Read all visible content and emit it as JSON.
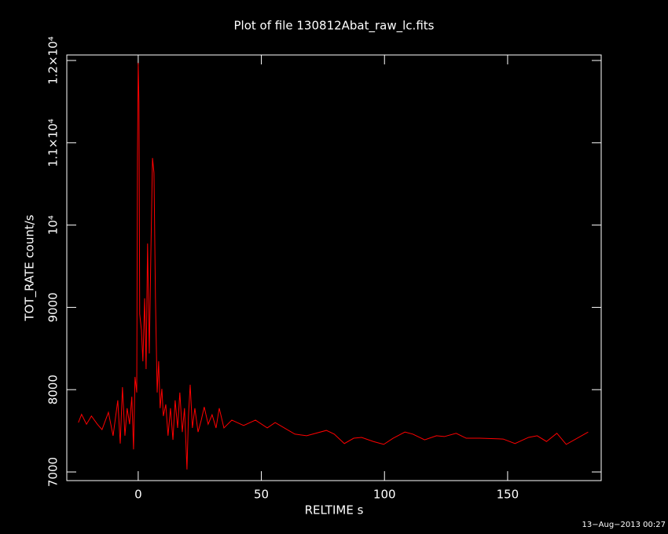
{
  "chart_data": {
    "type": "line",
    "title": "Plot of file 130812Abat_raw_lc.fits",
    "x_label": "RELTIME  s",
    "y_label": "TOT_RATE  count/s",
    "timestamp": "13−Aug−2013 00:27",
    "xlim": [
      -29,
      188
    ],
    "ylim": [
      6895,
      12067
    ],
    "xticks": [
      0,
      50,
      100,
      150
    ],
    "yticks": [
      7000,
      8000,
      9000,
      {
        "value": 10000,
        "label": "10⁴"
      },
      {
        "value": 11000,
        "label": "1.1×10⁴"
      },
      {
        "value": 12000,
        "label": "1.2×10⁴"
      }
    ],
    "x": [
      -24.3,
      -23,
      -21,
      -19,
      -16.6,
      -14.7,
      -12.1,
      -10.2,
      -8.3,
      -7.3,
      -6.4,
      -5.4,
      -4.5,
      -3.5,
      -2.6,
      -1.9,
      -1.3,
      -0.6,
      -0.3,
      0,
      0.3,
      0.6,
      1.3,
      1.9,
      2.6,
      3.2,
      3.8,
      4.5,
      5.1,
      5.8,
      6.4,
      7.0,
      7.7,
      8.3,
      8.9,
      9.6,
      10.2,
      11.2,
      12.1,
      13.1,
      14.1,
      15.0,
      16.0,
      16.9,
      17.9,
      18.8,
      19.8,
      20.4,
      21.1,
      22.0,
      23.0,
      24.3,
      25.6,
      26.8,
      28.4,
      30.0,
      31.6,
      32.9,
      34.8,
      38.0,
      42.8,
      47.6,
      52.4,
      55.6,
      63.6,
      68.4,
      76.4,
      79.6,
      83.7,
      87.5,
      90.7,
      95.5,
      99.7,
      103.5,
      108.3,
      111.5,
      116.3,
      121.1,
      124.3,
      129.1,
      133.2,
      138.7,
      148.2,
      153.0,
      158.5,
      162.0,
      165.8,
      170.0,
      173.8,
      182.7
    ],
    "series": [
      {
        "name": "TOT_RATE",
        "color": "#ff0000",
        "values": [
          7600,
          7700,
          7580,
          7680,
          7580,
          7515,
          7725,
          7440,
          7870,
          7345,
          8030,
          7440,
          7775,
          7580,
          7915,
          7275,
          8155,
          7965,
          10825,
          11970,
          11495,
          8920,
          8725,
          8345,
          9110,
          8250,
          9775,
          8440,
          9585,
          10815,
          10635,
          9110,
          7965,
          8345,
          7775,
          8010,
          7680,
          7820,
          7440,
          7775,
          7390,
          7870,
          7535,
          7965,
          7485,
          7775,
          7030,
          7680,
          8060,
          7535,
          7775,
          7485,
          7630,
          7790,
          7580,
          7695,
          7535,
          7775,
          7535,
          7630,
          7565,
          7630,
          7535,
          7600,
          7460,
          7440,
          7505,
          7460,
          7345,
          7410,
          7420,
          7370,
          7335,
          7410,
          7485,
          7460,
          7390,
          7440,
          7430,
          7470,
          7410,
          7410,
          7400,
          7345,
          7420,
          7440,
          7370,
          7470,
          7335,
          7485
        ]
      }
    ]
  }
}
